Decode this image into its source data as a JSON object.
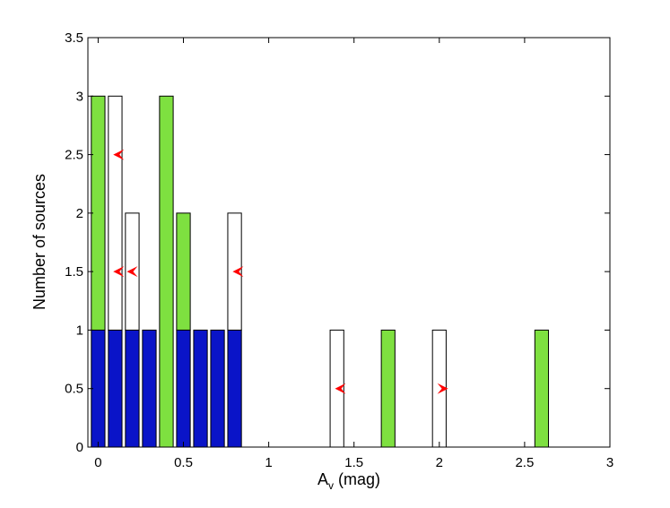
{
  "chart_data": {
    "type": "bar",
    "xlabel": "A",
    "xlabel_sub": "v",
    "xlabel_unit": "(mag)",
    "ylabel": "Number of sources",
    "xlim": [
      -0.06,
      3.0
    ],
    "ylim": [
      0,
      3.5
    ],
    "x_ticks": [
      "0",
      "0.5",
      "1",
      "1.5",
      "2",
      "2.5",
      "3"
    ],
    "y_ticks": [
      "0",
      "0.5",
      "1",
      "1.5",
      "2",
      "2.5",
      "3",
      "3.5"
    ],
    "grid": false,
    "bin_width": 0.08,
    "colors": {
      "blue": "#0a14c8",
      "green": "#7ee040",
      "white": "#ffffff",
      "arrow": "#ff0000",
      "edge": "#000000"
    },
    "series": [
      {
        "color_key": "blue",
        "bars": [
          {
            "x": 0.0,
            "base": 0,
            "value": 1
          },
          {
            "x": 0.1,
            "base": 0,
            "value": 1
          },
          {
            "x": 0.2,
            "base": 0,
            "value": 1
          },
          {
            "x": 0.3,
            "base": 0,
            "value": 1
          },
          {
            "x": 0.5,
            "base": 0,
            "value": 1
          },
          {
            "x": 0.6,
            "base": 0,
            "value": 1
          },
          {
            "x": 0.7,
            "base": 0,
            "value": 1
          },
          {
            "x": 0.8,
            "base": 0,
            "value": 1
          }
        ]
      },
      {
        "color_key": "green",
        "bars": [
          {
            "x": 0.0,
            "base": 1,
            "value": 2
          },
          {
            "x": 0.4,
            "base": 0,
            "value": 3
          },
          {
            "x": 0.5,
            "base": 1,
            "value": 1
          },
          {
            "x": 1.7,
            "base": 0,
            "value": 1
          },
          {
            "x": 2.6,
            "base": 0,
            "value": 1
          }
        ]
      },
      {
        "color_key": "white",
        "bars": [
          {
            "x": 0.1,
            "base": 1,
            "value": 2
          },
          {
            "x": 0.2,
            "base": 1,
            "value": 1
          },
          {
            "x": 0.8,
            "base": 1,
            "value": 1
          },
          {
            "x": 1.4,
            "base": 0,
            "value": 1
          },
          {
            "x": 2.0,
            "base": 0,
            "value": 1
          }
        ]
      }
    ],
    "arrows": [
      {
        "x": 0.12,
        "y": 2.5,
        "direction": "left"
      },
      {
        "x": 0.12,
        "y": 1.5,
        "direction": "left"
      },
      {
        "x": 0.2,
        "y": 1.5,
        "direction": "left"
      },
      {
        "x": 0.82,
        "y": 1.5,
        "direction": "left"
      },
      {
        "x": 1.42,
        "y": 0.5,
        "direction": "left"
      },
      {
        "x": 2.02,
        "y": 0.5,
        "direction": "right"
      }
    ]
  }
}
